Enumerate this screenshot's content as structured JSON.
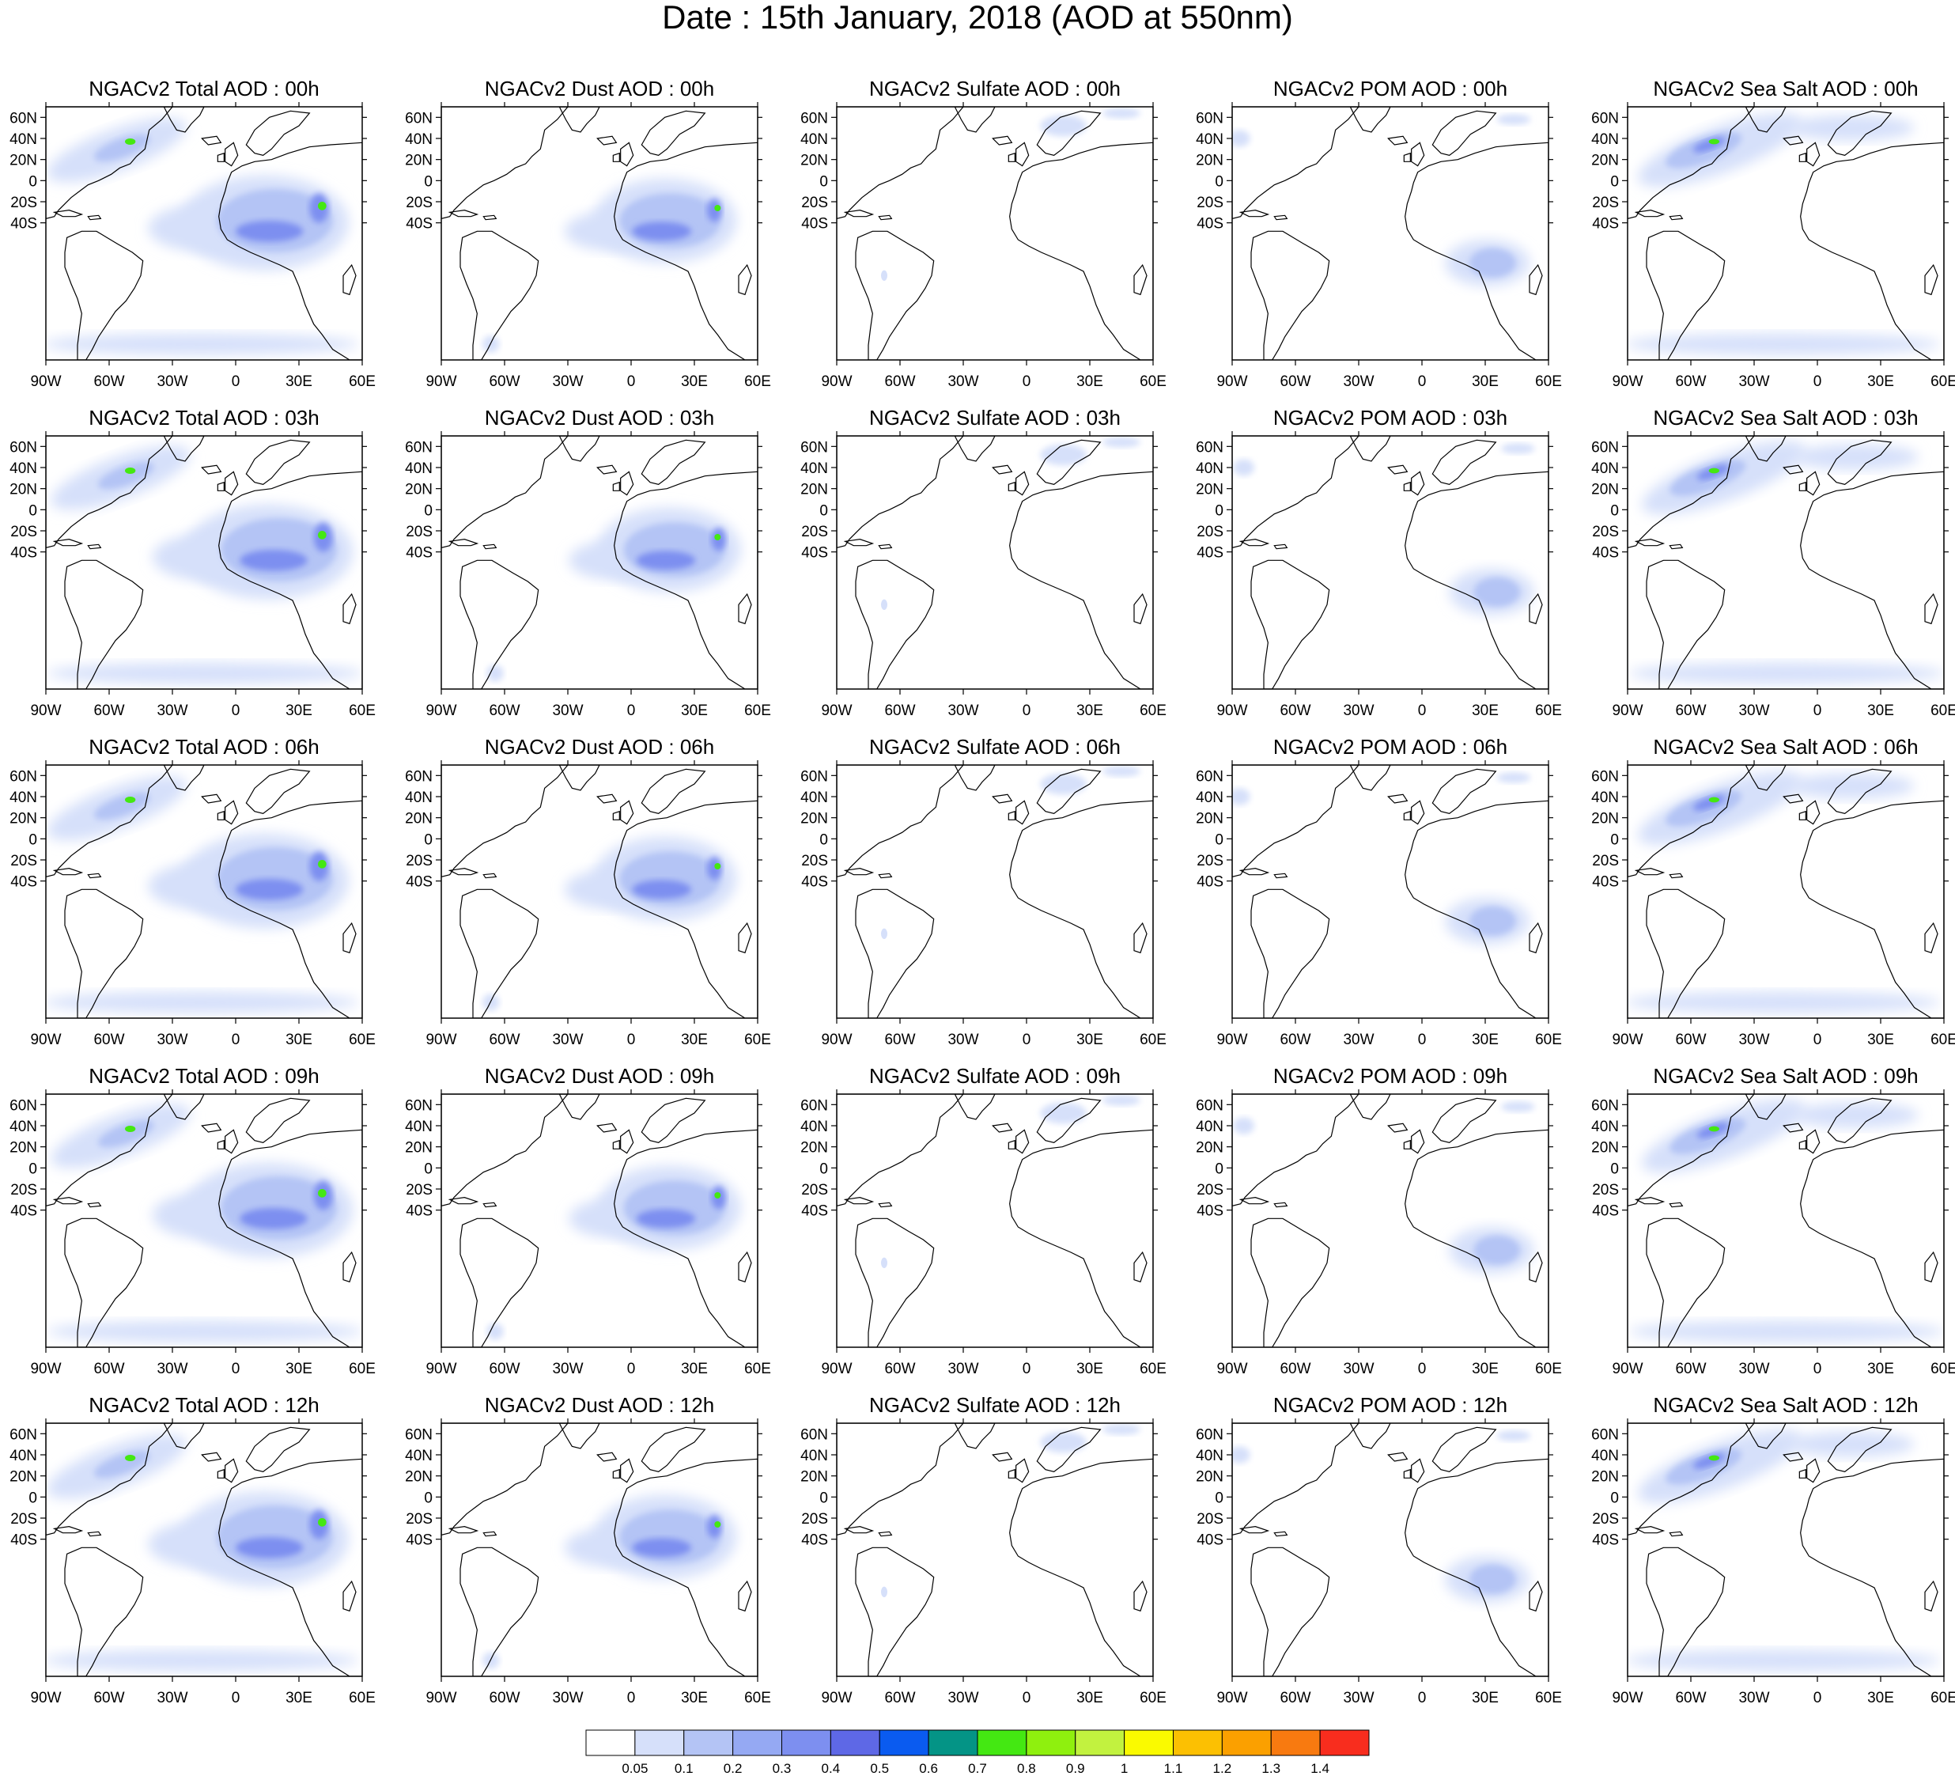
{
  "title": "Date : 15th January, 2018 (AOD at 550nm)",
  "panels": [
    [
      "NGACv2 Total AOD : 00h",
      "NGACv2 Dust AOD : 00h",
      "NGACv2 Sulfate AOD : 00h",
      "NGACv2 POM AOD : 00h",
      "NGACv2 Sea Salt AOD : 00h"
    ],
    [
      "NGACv2 Total AOD : 03h",
      "NGACv2 Dust AOD : 03h",
      "NGACv2 Sulfate AOD : 03h",
      "NGACv2 POM AOD : 03h",
      "NGACv2 Sea Salt AOD : 03h"
    ],
    [
      "NGACv2 Total AOD : 06h",
      "NGACv2 Dust AOD : 06h",
      "NGACv2 Sulfate AOD : 06h",
      "NGACv2 POM AOD : 06h",
      "NGACv2 Sea Salt AOD : 06h"
    ],
    [
      "NGACv2 Total AOD : 09h",
      "NGACv2 Dust AOD : 09h",
      "NGACv2 Sulfate AOD : 09h",
      "NGACv2 POM AOD : 09h",
      "NGACv2 Sea Salt  AOD : 09h"
    ],
    [
      "NGACv2 Total AOD  : 12h",
      "NGACv2 Dust AOD : 12h",
      "NGACv2 Sulfate AOD : 12h",
      "NGACv2 POM  AOD : 12h",
      "NGACv2 Sea Salt  AOD : 12h"
    ]
  ],
  "species": [
    "total",
    "dust",
    "sulfate",
    "pom",
    "seasalt"
  ],
  "lon_ticks": [
    "90W",
    "60W",
    "30W",
    "0",
    "30E",
    "60E"
  ],
  "lat_ticks": [
    "60N",
    "40N",
    "20N",
    "0",
    "20S",
    "40S"
  ],
  "map_extent": {
    "lon": [
      -90,
      60
    ],
    "lat": [
      -50,
      70
    ]
  },
  "colorbar": {
    "labels": [
      "0.05",
      "0.1",
      "0.2",
      "0.3",
      "0.4",
      "0.5",
      "0.6",
      "0.7",
      "0.8",
      "0.9",
      "1",
      "1.1",
      "1.2",
      "1.3",
      "1.4"
    ],
    "colors": [
      "#ffffff",
      "#d6e0fa",
      "#b4c4f5",
      "#95a9f3",
      "#7d8ff0",
      "#5e68e6",
      "#0a5bf0",
      "#049486",
      "#44e812",
      "#8ff00e",
      "#c2f23f",
      "#fafa00",
      "#fcc002",
      "#fba000",
      "#f87a10",
      "#f82d1e"
    ]
  },
  "colors": {
    "aerosol_light": "#d6e0fa",
    "aerosol_mid": "#b4c4f5",
    "aerosol_strong": "#7d8ff0",
    "aerosol_peak": "#44e812",
    "coastline": "#000000"
  }
}
